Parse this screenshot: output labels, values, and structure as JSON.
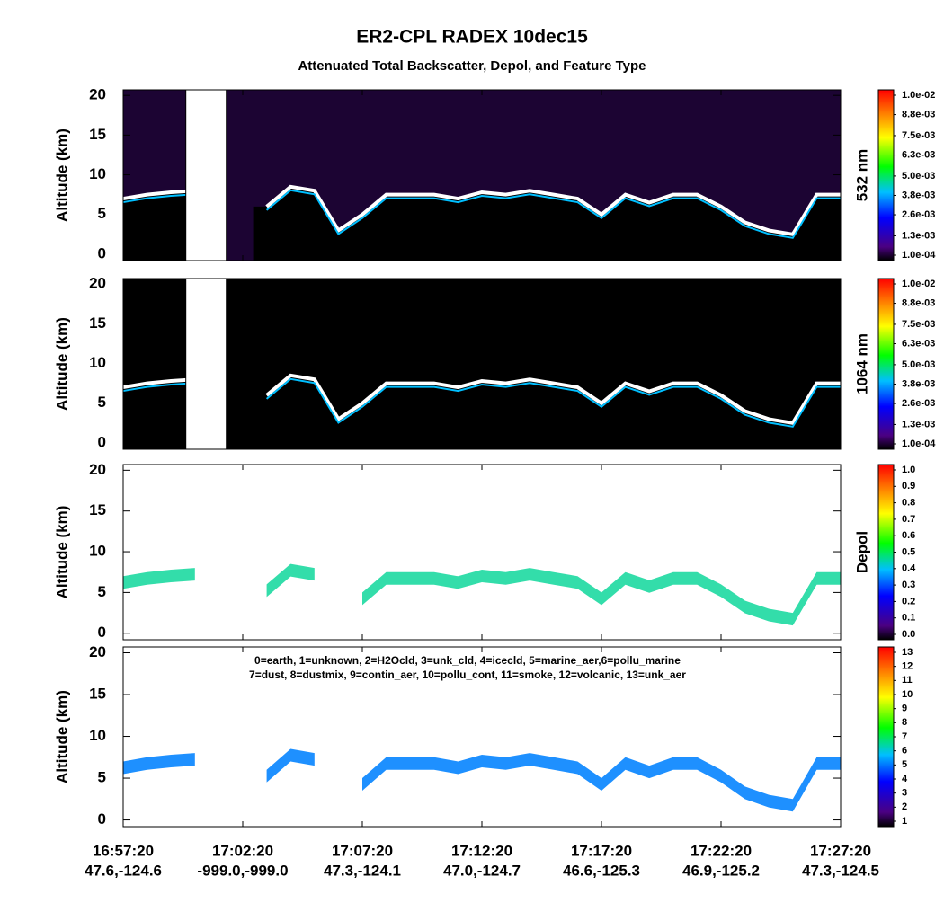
{
  "chart_data": {
    "type": "curtain",
    "title": "ER2-CPL RADEX 10dec15",
    "subtitle": "Attenuated Total Backscatter, Depol, and Feature Type",
    "xlim": [
      61040,
      62840
    ],
    "xticks": [
      {
        "value": 61040,
        "label": "16:57:20"
      },
      {
        "value": 61340,
        "label": "17:02:20"
      },
      {
        "value": 61640,
        "label": "17:07:20"
      },
      {
        "value": 61940,
        "label": "17:12:20"
      },
      {
        "value": 62240,
        "label": "17:17:20"
      },
      {
        "value": 62540,
        "label": "17:22:20"
      },
      {
        "value": 62840,
        "label": "17:27:20"
      }
    ],
    "xtick_locations": [
      "47.6,-124.6",
      "-999.0,-999.0",
      "47.3,-124.1",
      "47.0,-124.7",
      "46.6,-125.3",
      "46.9,-125.2",
      "47.3,-124.5"
    ],
    "x": [
      61040,
      61100,
      61160,
      61220,
      61280,
      61340,
      61400,
      61460,
      61520,
      61580,
      61640,
      61700,
      61760,
      61820,
      61880,
      61940,
      62000,
      62060,
      62120,
      62180,
      62240,
      62300,
      62360,
      62420,
      62480,
      62540,
      62600,
      62660,
      62720,
      62780,
      62840
    ],
    "panels": [
      {
        "ylabel": "Altitude (km)",
        "ylim": [
          -0.8,
          20.7
        ],
        "yticks": [
          0,
          5,
          10,
          15,
          20
        ],
        "colorbar_label": "532 nm",
        "background": "#1c0433",
        "values": [
          7,
          7.5,
          7.8,
          8,
          null,
          null,
          6,
          8.5,
          8,
          3,
          5,
          7.5,
          7.5,
          7.5,
          7,
          7.8,
          7.5,
          8,
          7.5,
          7,
          5,
          7.5,
          6.5,
          7.5,
          7.5,
          6,
          4,
          3,
          2.5,
          7.5,
          7.5
        ],
        "clim": [
          0.0001,
          0.01
        ],
        "colorbar_ticks": [
          {
            "value": 0.0001,
            "label": "1.0e-04"
          },
          {
            "value": 0.0013,
            "label": "1.3e-03"
          },
          {
            "value": 0.0026,
            "label": "2.6e-03"
          },
          {
            "value": 0.0038,
            "label": "3.8e-03"
          },
          {
            "value": 0.005,
            "label": "5.0e-03"
          },
          {
            "value": 0.0063,
            "label": "6.3e-03"
          },
          {
            "value": 0.0075,
            "label": "7.5e-03"
          },
          {
            "value": 0.0088,
            "label": "8.8e-03"
          },
          {
            "value": 0.01,
            "label": "1.0e-02"
          }
        ]
      },
      {
        "ylabel": "Altitude (km)",
        "ylim": [
          -0.8,
          20.7
        ],
        "yticks": [
          0,
          5,
          10,
          15,
          20
        ],
        "colorbar_label": "1064 nm",
        "background": "#000000",
        "values": [
          7,
          7.5,
          7.8,
          8,
          null,
          null,
          6,
          8.5,
          8,
          3,
          5,
          7.5,
          7.5,
          7.5,
          7,
          7.8,
          7.5,
          8,
          7.5,
          7,
          5,
          7.5,
          6.5,
          7.5,
          7.5,
          6,
          4,
          3,
          2.5,
          7.5,
          7.5
        ],
        "clim": [
          0.0001,
          0.01
        ],
        "colorbar_ticks": [
          {
            "value": 0.0001,
            "label": "1.0e-04"
          },
          {
            "value": 0.0013,
            "label": "1.3e-03"
          },
          {
            "value": 0.0026,
            "label": "2.6e-03"
          },
          {
            "value": 0.0038,
            "label": "3.8e-03"
          },
          {
            "value": 0.005,
            "label": "5.0e-03"
          },
          {
            "value": 0.0063,
            "label": "6.3e-03"
          },
          {
            "value": 0.0075,
            "label": "7.5e-03"
          },
          {
            "value": 0.0088,
            "label": "8.8e-03"
          },
          {
            "value": 0.01,
            "label": "1.0e-02"
          }
        ]
      },
      {
        "ylabel": "Altitude (km)",
        "ylim": [
          -0.8,
          20.7
        ],
        "yticks": [
          0,
          5,
          10,
          15,
          20
        ],
        "colorbar_label": "Depol",
        "background": "#ffffff",
        "color": "#33ddaa",
        "values": [
          7,
          7.5,
          7.8,
          8,
          null,
          null,
          6,
          8.5,
          8,
          null,
          5,
          7.5,
          7.5,
          7.5,
          7,
          7.8,
          7.5,
          8,
          7.5,
          7,
          5,
          7.5,
          6.5,
          7.5,
          7.5,
          6,
          4,
          3,
          2.5,
          7.5,
          7.5
        ],
        "clim": [
          0,
          1
        ],
        "colorbar_ticks": [
          {
            "value": 0,
            "label": "0.0"
          },
          0.1,
          0.2,
          0.3,
          0.4,
          0.5,
          0.6,
          0.7,
          0.8,
          0.9,
          {
            "value": 1,
            "label": "1.0"
          }
        ]
      },
      {
        "ylabel": "Altitude (km)",
        "ylim": [
          -0.8,
          20.7
        ],
        "yticks": [
          0,
          5,
          10,
          15,
          20
        ],
        "background": "#ffffff",
        "color": "#1e90ff",
        "values": [
          7,
          7.5,
          7.8,
          8,
          null,
          null,
          6,
          8.5,
          8,
          null,
          5,
          7.5,
          7.5,
          7.5,
          7,
          7.8,
          7.5,
          8,
          7.5,
          7,
          5,
          7.5,
          6.5,
          7.5,
          7.5,
          6,
          4,
          3,
          2.5,
          7.5,
          7.5
        ],
        "clim": [
          1,
          13
        ],
        "colorbar_ticks": [
          1,
          2,
          3,
          4,
          5,
          6,
          7,
          8,
          9,
          10,
          11,
          12,
          13
        ],
        "legend_lines": [
          "0=earth, 1=unknown, 2=H2Ocld, 3=unk_cld, 4=icecld, 5=marine_aer,6=pollu_marine",
          "7=dust, 8=dustmix, 9=contin_aer, 10=pollu_cont, 11=smoke, 12=volcanic, 13=unk_aer"
        ]
      }
    ]
  }
}
